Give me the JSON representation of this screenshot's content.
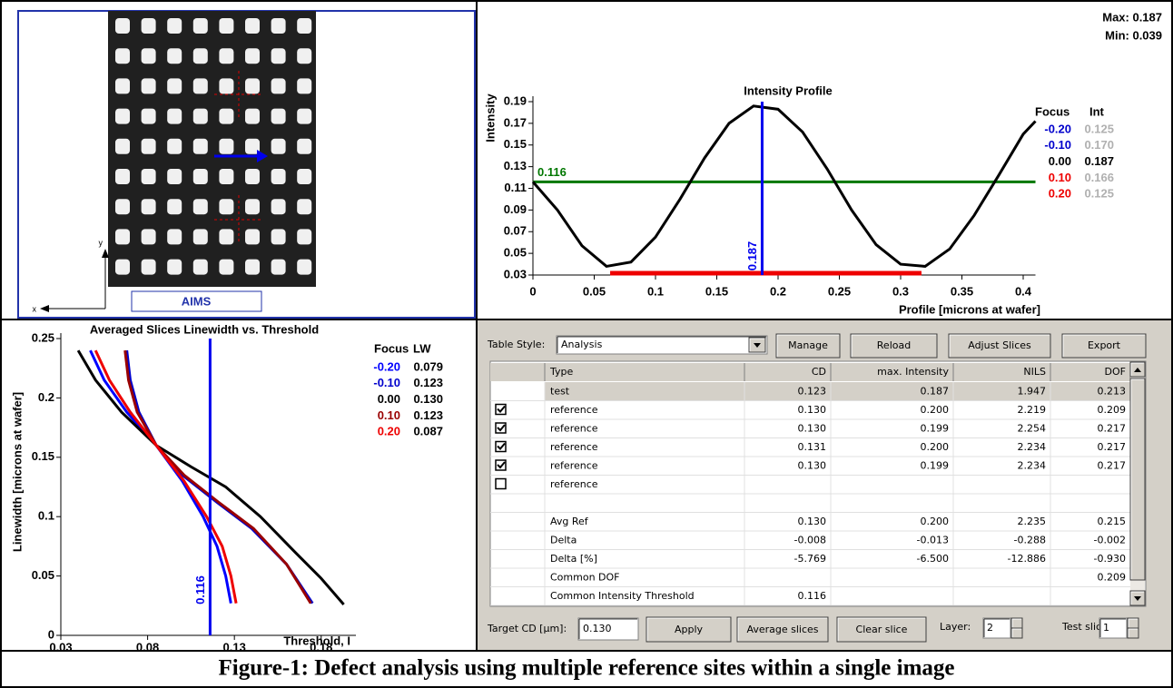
{
  "image_panel": {
    "label": "AIMS",
    "x_axis": "x",
    "y_axis": "y"
  },
  "chart_data": [
    {
      "type": "line",
      "title": "Intensity Profile",
      "xlabel": "Profile  [microns at wafer]",
      "ylabel": "Intensity",
      "max_label": "Max: 0.187",
      "min_label": "Min: 0.039",
      "xlim": [
        0,
        0.41
      ],
      "ylim": [
        0.03,
        0.19
      ],
      "xticks": [
        0,
        0.05,
        0.1,
        0.15,
        0.2,
        0.25,
        0.3,
        0.35,
        0.4
      ],
      "yticks": [
        0.03,
        0.05,
        0.07,
        0.09,
        0.11,
        0.13,
        0.15,
        0.17,
        0.19
      ],
      "series": [
        {
          "color": "#000000",
          "x": [
            0,
            0.02,
            0.04,
            0.06,
            0.08,
            0.1,
            0.12,
            0.14,
            0.16,
            0.18,
            0.2,
            0.22,
            0.24,
            0.26,
            0.28,
            0.3,
            0.32,
            0.34,
            0.36,
            0.38,
            0.4,
            0.41
          ],
          "values": [
            0.116,
            0.09,
            0.057,
            0.038,
            0.042,
            0.065,
            0.1,
            0.138,
            0.17,
            0.186,
            0.183,
            0.162,
            0.128,
            0.09,
            0.058,
            0.04,
            0.038,
            0.054,
            0.085,
            0.122,
            0.16,
            0.172
          ]
        }
      ],
      "threshold": 0.116,
      "threshold_color": "#007700",
      "peak_x": 0.187,
      "peak_color": "#0000ee",
      "red_range": [
        0.063,
        0.317
      ],
      "red_color": "#ee0000",
      "legend": {
        "headers": [
          "Focus",
          "Int"
        ],
        "rows": [
          {
            "focus": "-0.20",
            "int": "0.125",
            "color": "#0000cc",
            "int_color": "#b0b0b0"
          },
          {
            "focus": "-0.10",
            "int": "0.170",
            "color": "#0000cc",
            "int_color": "#b0b0b0"
          },
          {
            "focus": "0.00",
            "int": "0.187",
            "color": "#000000",
            "int_color": "#000000"
          },
          {
            "focus": "0.10",
            "int": "0.166",
            "color": "#ee0000",
            "int_color": "#b0b0b0"
          },
          {
            "focus": "0.20",
            "int": "0.125",
            "color": "#ee0000",
            "int_color": "#b0b0b0"
          }
        ]
      }
    },
    {
      "type": "line",
      "title": "Averaged Slices Linewidth vs. Threshold",
      "xlabel": "Threshold, I",
      "ylabel": "Linewidth  [microns at wafer]",
      "xlim": [
        0.03,
        0.2
      ],
      "ylim": [
        0,
        0.25
      ],
      "xticks": [
        0.03,
        0.08,
        0.13,
        0.18
      ],
      "yticks": [
        0,
        0.05,
        0.1,
        0.15,
        0.2,
        0.25
      ],
      "legend_headers": [
        "Focus",
        "LW"
      ],
      "threshold": 0.116,
      "threshold_color": "#0000ee",
      "series": [
        {
          "name": "-0.20",
          "lw": "0.079",
          "color": "#0000ff",
          "x": [
            0.047,
            0.055,
            0.068,
            0.085,
            0.1,
            0.112,
            0.12,
            0.125,
            0.128
          ],
          "values": [
            0.24,
            0.215,
            0.188,
            0.16,
            0.13,
            0.1,
            0.075,
            0.05,
            0.027
          ]
        },
        {
          "name": "-0.10",
          "lw": "0.123",
          "color": "#0000cc",
          "x": [
            0.068,
            0.07,
            0.075,
            0.085,
            0.1,
            0.12,
            0.14,
            0.16,
            0.175
          ],
          "values": [
            0.24,
            0.215,
            0.188,
            0.16,
            0.135,
            0.112,
            0.09,
            0.06,
            0.027
          ]
        },
        {
          "name": "0.00",
          "lw": "0.130",
          "color": "#000000",
          "x": [
            0.04,
            0.05,
            0.065,
            0.085,
            0.105,
            0.125,
            0.145,
            0.165,
            0.18,
            0.193
          ],
          "values": [
            0.24,
            0.215,
            0.188,
            0.16,
            0.142,
            0.125,
            0.1,
            0.07,
            0.048,
            0.026
          ]
        },
        {
          "name": "0.10",
          "lw": "0.123",
          "color": "#990000",
          "x": [
            0.067,
            0.069,
            0.074,
            0.085,
            0.101,
            0.121,
            0.141,
            0.16,
            0.174
          ],
          "values": [
            0.24,
            0.215,
            0.188,
            0.16,
            0.135,
            0.112,
            0.09,
            0.06,
            0.027
          ]
        },
        {
          "name": "0.20",
          "lw": "0.087",
          "color": "#ee0000",
          "x": [
            0.05,
            0.058,
            0.07,
            0.085,
            0.101,
            0.114,
            0.123,
            0.128,
            0.131
          ],
          "values": [
            0.24,
            0.215,
            0.188,
            0.16,
            0.13,
            0.1,
            0.075,
            0.05,
            0.027
          ]
        }
      ]
    }
  ],
  "table_panel": {
    "table_style_label": "Table Style:",
    "table_style": "Analysis",
    "top_buttons": [
      "Manage",
      "Reload",
      "Adjust Slices",
      "Export"
    ],
    "columns": [
      "Type",
      "CD",
      "max. Intensity",
      "NILS",
      "DOF"
    ],
    "rows": [
      {
        "checked": null,
        "cells": [
          "test",
          "0.123",
          "0.187",
          "1.947",
          "0.213"
        ]
      },
      {
        "checked": true,
        "cells": [
          "reference",
          "0.130",
          "0.200",
          "2.219",
          "0.209"
        ]
      },
      {
        "checked": true,
        "cells": [
          "reference",
          "0.130",
          "0.199",
          "2.254",
          "0.217"
        ]
      },
      {
        "checked": true,
        "cells": [
          "reference",
          "0.131",
          "0.200",
          "2.234",
          "0.217"
        ]
      },
      {
        "checked": true,
        "cells": [
          "reference",
          "0.130",
          "0.199",
          "2.234",
          "0.217"
        ]
      },
      {
        "checked": false,
        "cells": [
          "reference",
          null,
          null,
          null,
          null
        ]
      },
      {
        "checked": null,
        "cells": [
          null,
          null,
          null,
          null,
          null
        ]
      },
      {
        "checked": null,
        "cells": [
          "Avg Ref",
          "0.130",
          "0.200",
          "2.235",
          "0.215"
        ]
      },
      {
        "checked": null,
        "cells": [
          "Delta",
          "-0.008",
          "-0.013",
          "-0.288",
          "-0.002"
        ]
      },
      {
        "checked": null,
        "cells": [
          "Delta [%]",
          "-5.769",
          "-6.500",
          "-12.886",
          "-0.930"
        ]
      },
      {
        "checked": null,
        "cells": [
          "Common DOF",
          null,
          null,
          null,
          "0.209"
        ]
      },
      {
        "checked": null,
        "cells": [
          "Common Intensity Threshold",
          "0.116",
          null,
          null,
          null
        ]
      }
    ],
    "target_cd_label": "Target CD [µm]:",
    "target_cd": "0.130",
    "bottom_buttons": [
      "Apply",
      "Average slices",
      "Clear slice"
    ],
    "layer_label": "Layer:",
    "layer": "2",
    "test_slice_label": "Test slice:",
    "test_slice": "1"
  },
  "caption": "Figure-1: Defect analysis using multiple reference sites within a single image"
}
